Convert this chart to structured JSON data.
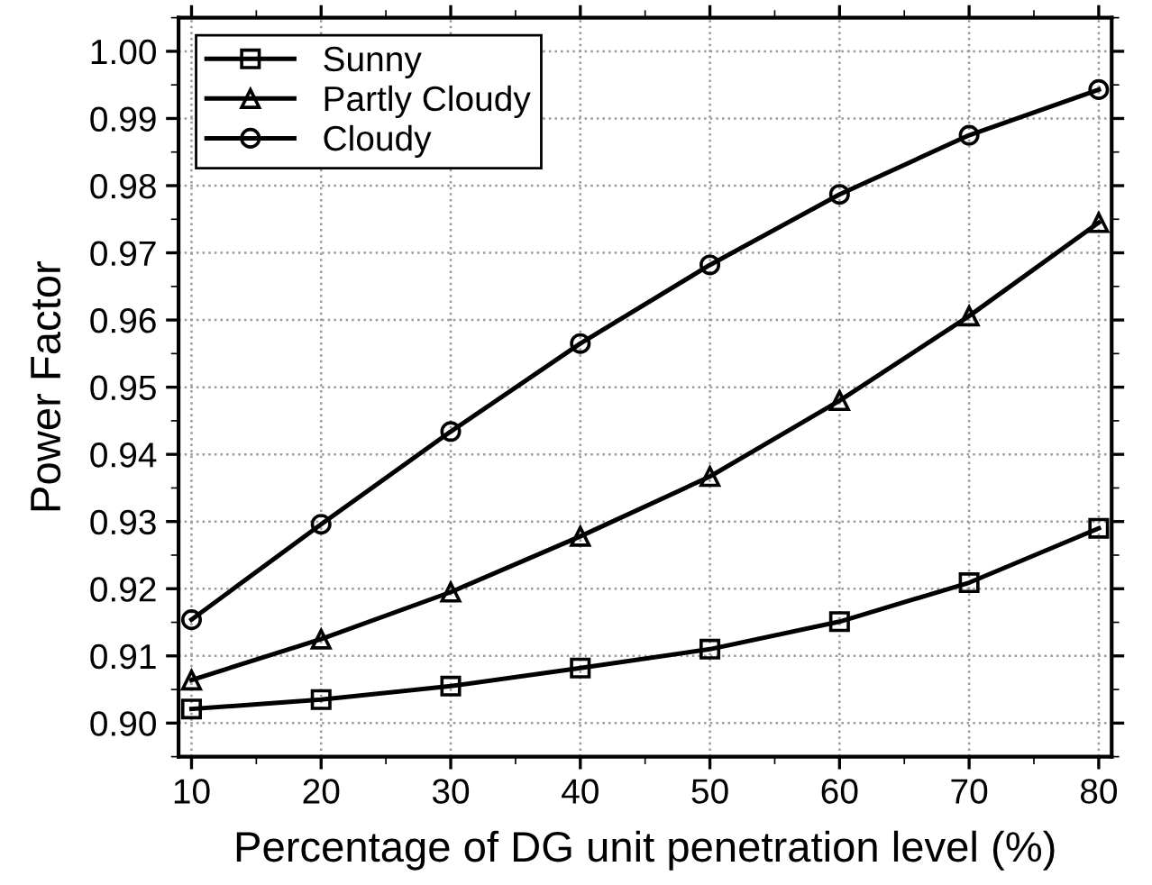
{
  "chart_data": {
    "type": "line",
    "xlabel": "Percentage of DG unit penetration level (%)",
    "ylabel": "Power Factor",
    "x": [
      10,
      20,
      30,
      40,
      50,
      60,
      70,
      80
    ],
    "series": [
      {
        "name": "Sunny",
        "color": "#000000",
        "marker": "square",
        "values": [
          0.9021,
          0.9035,
          0.9055,
          0.9082,
          0.911,
          0.9151,
          0.9209,
          0.929
        ]
      },
      {
        "name": "Partly Cloudy",
        "color": "#000000",
        "marker": "triangle",
        "values": [
          0.9064,
          0.9125,
          0.9195,
          0.9278,
          0.9367,
          0.948,
          0.9606,
          0.9745
        ]
      },
      {
        "name": "Cloudy",
        "color": "#000000",
        "marker": "circle",
        "values": [
          0.9154,
          0.9296,
          0.9434,
          0.9565,
          0.9682,
          0.9787,
          0.9875,
          0.9943
        ]
      }
    ],
    "xlim": [
      9,
      81
    ],
    "xticks": [
      10,
      20,
      30,
      40,
      50,
      60,
      70,
      80
    ],
    "ylim": [
      0.895,
      1.005
    ],
    "yticks": [
      {
        "value": 0.9,
        "label": "0.90"
      },
      0.91,
      0.92,
      0.93,
      0.94,
      0.95,
      0.96,
      0.97,
      0.98,
      0.99,
      {
        "value": 1.0,
        "label": "1.00"
      }
    ],
    "grid": true,
    "legend": "top left",
    "line_style": "solid"
  }
}
